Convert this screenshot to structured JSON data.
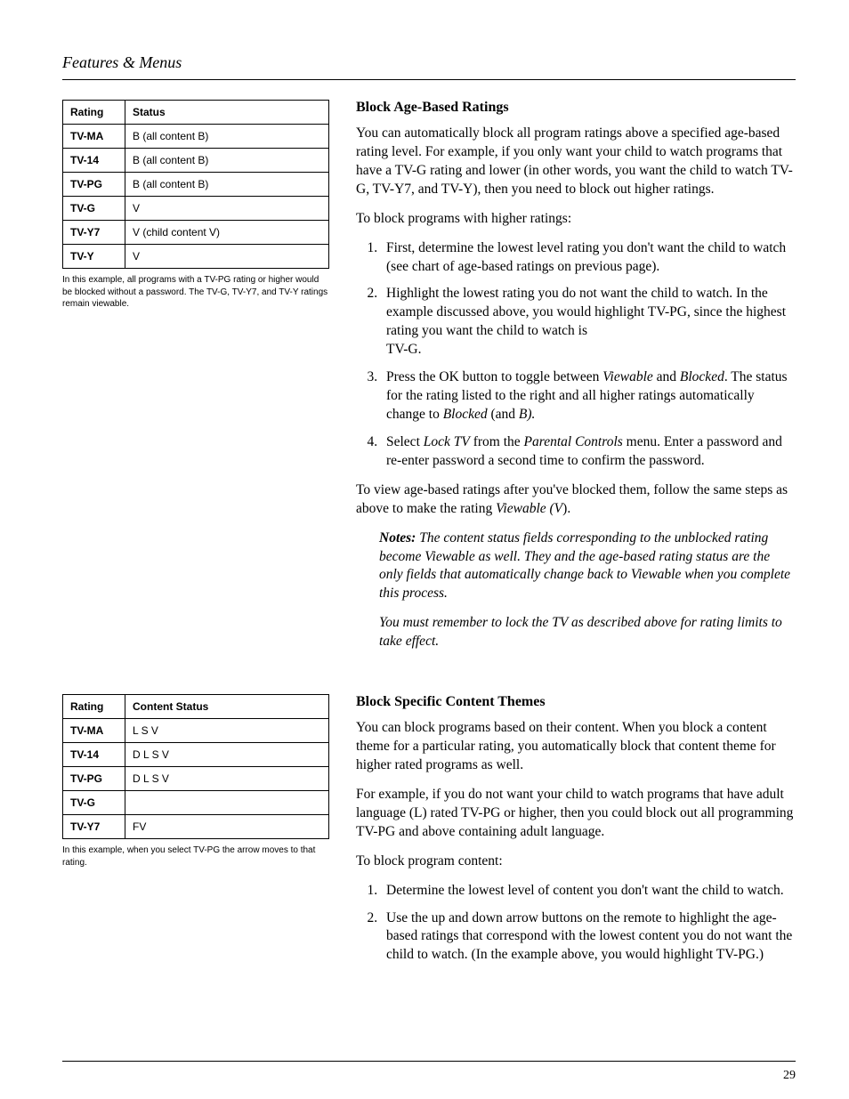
{
  "runningHead": "Features & Menus",
  "pageNumber": "29",
  "section1": {
    "title": "Block Age-Based Ratings",
    "intro": "You can automatically block all program ratings above a specified age-based rating level. For example, if you only want your child to watch programs that have a TV-G rating and lower (in other words, you want the child to watch TV-G, TV-Y7, and TV-Y), then you need to block out higher ratings.",
    "lead": "To block programs with higher ratings:",
    "steps": {
      "s1": "First, determine the lowest level rating you don't want the child to watch (see chart of age-based ratings on previous page).",
      "s2a": "Highlight the lowest rating you do not want the child to watch. In the example discussed above, you would highlight TV-PG, since the highest rating you want the child to watch is",
      "s2b": "TV-G.",
      "s3": {
        "a": "Press the OK button to toggle between ",
        "i1": "Viewable",
        "b": " and ",
        "i2": "Blocked",
        "c": ". The status for the rating listed to the right and all higher ratings automatically change to ",
        "i3": "Blocked",
        "d": " (and ",
        "i4": "B).",
        "e": ""
      },
      "s4": {
        "a": "Select ",
        "i1": "Lock TV",
        "b": " from the ",
        "i2": "Parental Controls",
        "c": " menu. Enter a password and re-enter password a second time to confirm the password."
      }
    },
    "after": {
      "a": "To view age-based ratings after you've blocked them, follow the same steps as above to make the rating ",
      "i1": "Viewable (V",
      "b": ")."
    },
    "notesLabel": "Notes:",
    "note1": " The content status fields corresponding to the unblocked rating become Viewable as well. They and the age-based rating status are the only fields that automatically change back to Viewable when you complete this process.",
    "note2": "You must remember to lock the TV as described above for rating limits to take effect."
  },
  "section2": {
    "title": "Block Specific Content Themes",
    "intro": "You can block programs based on their content. When you block a content theme for a particular rating, you automatically block that content theme for higher rated programs as well.",
    "example": "For example, if you do not want your child to watch programs that have adult language (L) rated TV-PG or higher, then you could block out all programming TV-PG and above containing adult language.",
    "lead": "To block program content:",
    "steps": {
      "s1": "Determine the lowest level of content you don't want the child to watch.",
      "s2": "Use the up and down arrow buttons on the remote to highlight the age-based ratings that correspond with the lowest content you do not want the child to watch. (In the example above, you would highlight TV-PG.)"
    }
  },
  "table1": {
    "h1": "Rating",
    "h2": "Status",
    "r0c0": "TV-MA",
    "r0c1": "B (all content B)",
    "r1c0": "TV-14",
    "r1c1": "B (all content B)",
    "r2c0": "TV-PG",
    "r2c1": "B (all content B)",
    "r3c0": "TV-G",
    "r3c1": "V",
    "r4c0": "TV-Y7",
    "r4c1": "V (child content V)",
    "r5c0": "TV-Y",
    "r5c1": "V",
    "caption": "In this example, all programs with a TV-PG rating or higher would be blocked without a password. The TV-G, TV-Y7, and TV-Y ratings remain viewable."
  },
  "table2": {
    "h1": "Rating",
    "h2": "Content Status",
    "r0c0": "TV-MA",
    "r0c1": "L  S  V",
    "r1c0": "TV-14",
    "r1c1": "D  L  S  V",
    "r2c0": "TV-PG",
    "r2c1": "D  L  S  V",
    "r3c0": "TV-G",
    "r3c1": "",
    "r4c0": "TV-Y7",
    "r4c1": "FV",
    "caption": "In this example, when you select TV-PG the arrow moves to that rating."
  }
}
